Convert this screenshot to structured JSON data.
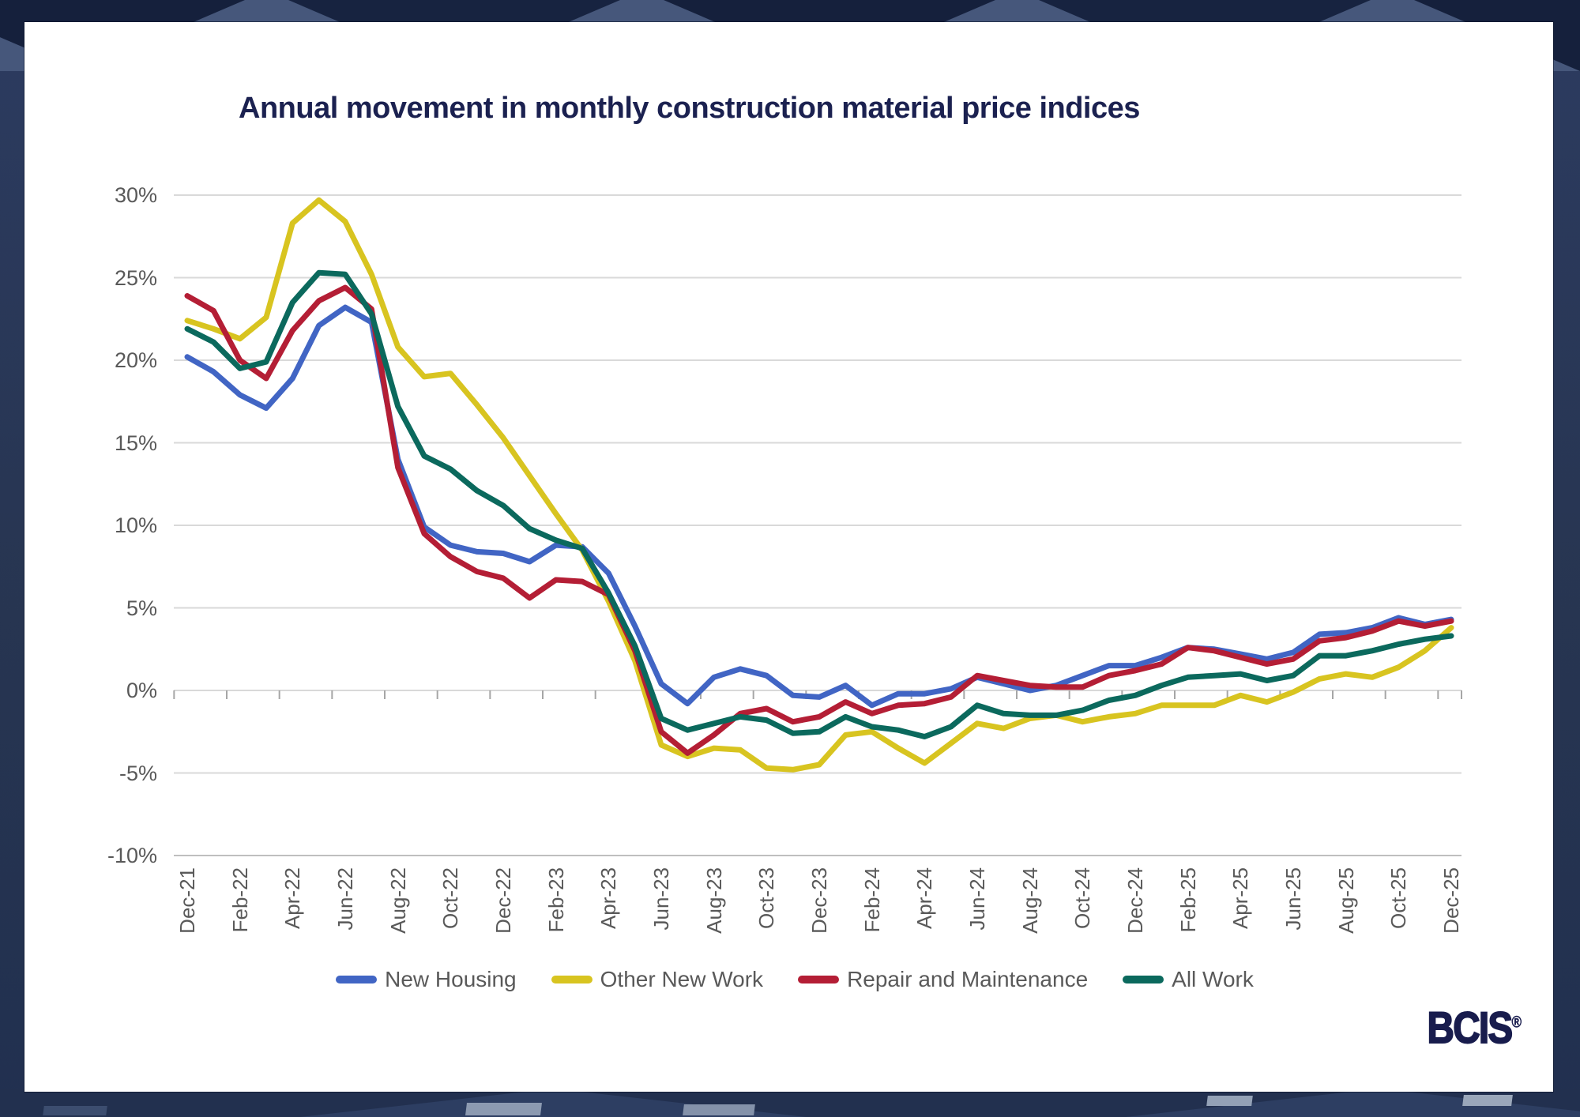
{
  "logo": {
    "text": "BCIS",
    "registered": "®"
  },
  "chart_data": {
    "type": "line",
    "title": "Annual movement in monthly construction material price indices",
    "xlabel": "",
    "ylabel": "",
    "ylim": [
      -10,
      30
    ],
    "y_tick_step": 5,
    "y_tick_labels": [
      "30%",
      "25%",
      "20%",
      "15%",
      "10%",
      "5%",
      "0%",
      "-5%",
      "-10%"
    ],
    "x_label_interval": 2,
    "grid": true,
    "legend_position": "bottom",
    "categories": [
      "Dec-21",
      "Jan-22",
      "Feb-22",
      "Mar-22",
      "Apr-22",
      "May-22",
      "Jun-22",
      "Jul-22",
      "Aug-22",
      "Sep-22",
      "Oct-22",
      "Nov-22",
      "Dec-22",
      "Jan-23",
      "Feb-23",
      "Mar-23",
      "Apr-23",
      "May-23",
      "Jun-23",
      "Jul-23",
      "Aug-23",
      "Sep-23",
      "Oct-23",
      "Nov-23",
      "Dec-23",
      "Jan-24",
      "Feb-24",
      "Mar-24",
      "Apr-24",
      "May-24",
      "Jun-24",
      "Jul-24",
      "Aug-24",
      "Sep-24",
      "Oct-24",
      "Nov-24",
      "Dec-24",
      "Jan-25",
      "Feb-25",
      "Mar-25",
      "Apr-25",
      "May-25",
      "Jun-25",
      "Jul-25",
      "Aug-25",
      "Sep-25",
      "Oct-25",
      "Nov-25",
      "Dec-25"
    ],
    "series": [
      {
        "name": "New Housing",
        "color": "#4165c4",
        "values": [
          20.2,
          19.3,
          17.9,
          17.1,
          18.9,
          22.1,
          23.2,
          22.3,
          14.0,
          9.9,
          8.8,
          8.4,
          8.3,
          7.8,
          8.8,
          8.7,
          7.1,
          3.9,
          0.4,
          -0.8,
          0.8,
          1.3,
          0.9,
          -0.3,
          -0.4,
          0.3,
          -0.9,
          -0.2,
          -0.2,
          0.1,
          0.8,
          0.4,
          0.0,
          0.3,
          0.9,
          1.5,
          1.5,
          2.0,
          2.6,
          2.5,
          2.2,
          1.9,
          2.3,
          3.4,
          3.5,
          3.8,
          4.4,
          4.0,
          4.3
        ]
      },
      {
        "name": "Other New Work",
        "color": "#d8c420",
        "values": [
          22.4,
          21.9,
          21.3,
          22.6,
          28.3,
          29.7,
          28.4,
          25.2,
          20.8,
          19.0,
          19.2,
          17.3,
          15.3,
          13.0,
          10.7,
          8.5,
          5.4,
          1.8,
          -3.3,
          -4.0,
          -3.5,
          -3.6,
          -4.7,
          -4.8,
          -4.5,
          -2.7,
          -2.5,
          -3.5,
          -4.4,
          -3.2,
          -2.0,
          -2.3,
          -1.7,
          -1.5,
          -1.9,
          -1.6,
          -1.4,
          -0.9,
          -0.9,
          -0.9,
          -0.3,
          -0.7,
          -0.1,
          0.7,
          1.0,
          0.8,
          1.4,
          2.4,
          3.8
        ]
      },
      {
        "name": "Repair and Maintenance",
        "color": "#b41e35",
        "values": [
          23.9,
          23.0,
          20.0,
          18.9,
          21.8,
          23.6,
          24.4,
          23.1,
          13.5,
          9.5,
          8.1,
          7.2,
          6.8,
          5.6,
          6.7,
          6.6,
          5.8,
          2.4,
          -2.5,
          -3.8,
          -2.7,
          -1.4,
          -1.1,
          -1.9,
          -1.6,
          -0.7,
          -1.4,
          -0.9,
          -0.8,
          -0.4,
          0.9,
          0.6,
          0.3,
          0.2,
          0.2,
          0.9,
          1.2,
          1.6,
          2.6,
          2.4,
          2.0,
          1.6,
          1.9,
          3.0,
          3.2,
          3.6,
          4.2,
          3.9,
          4.2
        ]
      },
      {
        "name": "All Work",
        "color": "#0b695d",
        "values": [
          21.9,
          21.1,
          19.5,
          19.9,
          23.5,
          25.3,
          25.2,
          22.8,
          17.2,
          14.2,
          13.4,
          12.1,
          11.2,
          9.8,
          9.1,
          8.6,
          5.9,
          2.7,
          -1.7,
          -2.4,
          -2.0,
          -1.6,
          -1.8,
          -2.6,
          -2.5,
          -1.6,
          -2.2,
          -2.4,
          -2.8,
          -2.2,
          -0.9,
          -1.4,
          -1.5,
          -1.5,
          -1.2,
          -0.6,
          -0.3,
          0.3,
          0.8,
          0.9,
          1.0,
          0.6,
          0.9,
          2.1,
          2.1,
          2.4,
          2.8,
          3.1,
          3.3
        ]
      }
    ],
    "axis_colors": {
      "grid": "#d9d9d9",
      "bottom_border": "#bfbfbf",
      "tick": "#a6a6a6",
      "label_text": "#595959"
    },
    "title_color": "#1b2150"
  }
}
